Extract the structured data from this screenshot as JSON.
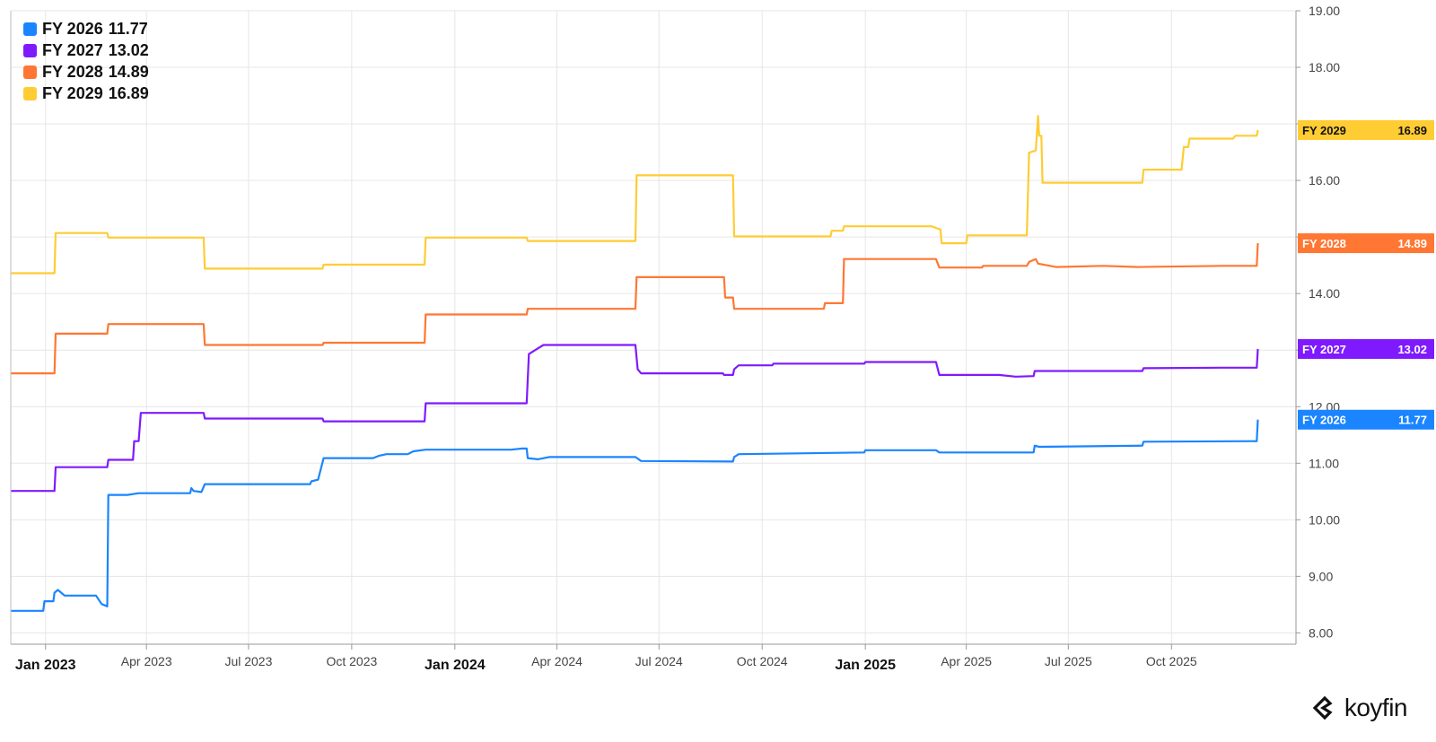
{
  "brand": {
    "name": "koyfin",
    "icon": "koyfin-logo-icon"
  },
  "chart_data": {
    "type": "line",
    "y_axis": {
      "range": [
        7.8,
        19.0
      ],
      "position": "right",
      "ticks": [
        8,
        9,
        10,
        11,
        12,
        13,
        14,
        15,
        16,
        17,
        18,
        19
      ],
      "tick_labels": [
        "8.00",
        "9.00",
        "10.00",
        "11.00",
        "12.00",
        "",
        "14.00",
        "",
        "16.00",
        "",
        "18.00",
        "19.00"
      ]
    },
    "x_axis": {
      "range": [
        "2022-12-01",
        "2026-01-20"
      ],
      "ticks": [
        {
          "date": "2023-01-01",
          "label": "Jan 2023",
          "major": true
        },
        {
          "date": "2023-04-01",
          "label": "Apr 2023",
          "major": false
        },
        {
          "date": "2023-07-01",
          "label": "Jul 2023",
          "major": false
        },
        {
          "date": "2023-10-01",
          "label": "Oct 2023",
          "major": false
        },
        {
          "date": "2024-01-01",
          "label": "Jan 2024",
          "major": true
        },
        {
          "date": "2024-04-01",
          "label": "Apr 2024",
          "major": false
        },
        {
          "date": "2024-07-01",
          "label": "Jul 2024",
          "major": false
        },
        {
          "date": "2024-10-01",
          "label": "Oct 2024",
          "major": false
        },
        {
          "date": "2025-01-01",
          "label": "Jan 2025",
          "major": true
        },
        {
          "date": "2025-04-01",
          "label": "Apr 2025",
          "major": false
        },
        {
          "date": "2025-07-01",
          "label": "Jul 2025",
          "major": false
        },
        {
          "date": "2025-10-01",
          "label": "Oct 2025",
          "major": false
        }
      ]
    },
    "grid": true,
    "legend_position": "top-left",
    "series": [
      {
        "name": "FY 2029",
        "last": "16.89",
        "color": "#ffcc33",
        "label_text_color": "#111111",
        "points": [
          [
            "2022-12-01",
            14.36
          ],
          [
            "2023-01-09",
            14.36
          ],
          [
            "2023-01-10",
            15.07
          ],
          [
            "2023-02-25",
            15.07
          ],
          [
            "2023-02-26",
            14.99
          ],
          [
            "2023-05-22",
            14.99
          ],
          [
            "2023-05-23",
            14.44
          ],
          [
            "2023-09-05",
            14.44
          ],
          [
            "2023-09-06",
            14.51
          ],
          [
            "2023-12-05",
            14.51
          ],
          [
            "2023-12-06",
            14.99
          ],
          [
            "2024-03-05",
            14.99
          ],
          [
            "2024-03-06",
            14.93
          ],
          [
            "2024-06-10",
            14.93
          ],
          [
            "2024-06-11",
            16.09
          ],
          [
            "2024-09-05",
            16.09
          ],
          [
            "2024-09-06",
            15.01
          ],
          [
            "2024-12-01",
            15.01
          ],
          [
            "2024-12-02",
            15.11
          ],
          [
            "2024-12-12",
            15.11
          ],
          [
            "2024-12-13",
            15.19
          ],
          [
            "2025-03-01",
            15.19
          ],
          [
            "2025-03-09",
            15.13
          ],
          [
            "2025-03-10",
            14.89
          ],
          [
            "2025-04-01",
            14.89
          ],
          [
            "2025-04-02",
            15.03
          ],
          [
            "2025-05-25",
            15.03
          ],
          [
            "2025-05-27",
            16.49
          ],
          [
            "2025-06-02",
            16.53
          ],
          [
            "2025-06-04",
            17.14
          ],
          [
            "2025-06-05",
            16.79
          ],
          [
            "2025-06-07",
            16.79
          ],
          [
            "2025-06-08",
            15.96
          ],
          [
            "2025-09-05",
            15.96
          ],
          [
            "2025-09-06",
            16.19
          ],
          [
            "2025-10-10",
            16.19
          ],
          [
            "2025-10-12",
            16.59
          ],
          [
            "2025-10-16",
            16.59
          ],
          [
            "2025-10-17",
            16.74
          ],
          [
            "2025-11-25",
            16.74
          ],
          [
            "2025-11-27",
            16.79
          ],
          [
            "2025-12-16",
            16.79
          ],
          [
            "2025-12-17",
            16.89
          ]
        ]
      },
      {
        "name": "FY 2028",
        "last": "14.89",
        "color": "#ff7733",
        "label_text_color": "#ffffff",
        "points": [
          [
            "2022-12-01",
            12.59
          ],
          [
            "2023-01-09",
            12.59
          ],
          [
            "2023-01-10",
            13.29
          ],
          [
            "2023-02-25",
            13.29
          ],
          [
            "2023-02-26",
            13.46
          ],
          [
            "2023-05-22",
            13.46
          ],
          [
            "2023-05-23",
            13.09
          ],
          [
            "2023-09-05",
            13.09
          ],
          [
            "2023-09-06",
            13.13
          ],
          [
            "2023-12-05",
            13.13
          ],
          [
            "2023-12-06",
            13.63
          ],
          [
            "2024-03-05",
            13.63
          ],
          [
            "2024-03-06",
            13.73
          ],
          [
            "2024-06-10",
            13.73
          ],
          [
            "2024-06-11",
            14.29
          ],
          [
            "2024-08-28",
            14.29
          ],
          [
            "2024-08-29",
            13.93
          ],
          [
            "2024-09-05",
            13.93
          ],
          [
            "2024-09-06",
            13.73
          ],
          [
            "2024-11-25",
            13.73
          ],
          [
            "2024-11-26",
            13.83
          ],
          [
            "2024-12-12",
            13.83
          ],
          [
            "2024-12-13",
            14.61
          ],
          [
            "2025-03-05",
            14.61
          ],
          [
            "2025-03-08",
            14.46
          ],
          [
            "2025-04-15",
            14.46
          ],
          [
            "2025-04-16",
            14.49
          ],
          [
            "2025-05-25",
            14.49
          ],
          [
            "2025-05-27",
            14.56
          ],
          [
            "2025-06-02",
            14.61
          ],
          [
            "2025-06-04",
            14.53
          ],
          [
            "2025-06-20",
            14.47
          ],
          [
            "2025-08-01",
            14.49
          ],
          [
            "2025-09-01",
            14.47
          ],
          [
            "2025-11-15",
            14.49
          ],
          [
            "2025-12-16",
            14.49
          ],
          [
            "2025-12-17",
            14.89
          ]
        ]
      },
      {
        "name": "FY 2027",
        "last": "13.02",
        "color": "#7f1aff",
        "label_text_color": "#ffffff",
        "points": [
          [
            "2022-12-01",
            10.51
          ],
          [
            "2023-01-09",
            10.51
          ],
          [
            "2023-01-10",
            10.93
          ],
          [
            "2023-02-25",
            10.93
          ],
          [
            "2023-02-26",
            11.06
          ],
          [
            "2023-03-20",
            11.06
          ],
          [
            "2023-03-21",
            11.39
          ],
          [
            "2023-03-25",
            11.39
          ],
          [
            "2023-03-27",
            11.89
          ],
          [
            "2023-05-22",
            11.89
          ],
          [
            "2023-05-23",
            11.79
          ],
          [
            "2023-09-05",
            11.79
          ],
          [
            "2023-09-06",
            11.74
          ],
          [
            "2023-12-05",
            11.74
          ],
          [
            "2023-12-06",
            12.06
          ],
          [
            "2024-03-05",
            12.06
          ],
          [
            "2024-03-07",
            12.93
          ],
          [
            "2024-03-15",
            13.03
          ],
          [
            "2024-03-20",
            13.09
          ],
          [
            "2024-06-10",
            13.09
          ],
          [
            "2024-06-12",
            12.66
          ],
          [
            "2024-06-15",
            12.59
          ],
          [
            "2024-08-27",
            12.59
          ],
          [
            "2024-08-28",
            12.56
          ],
          [
            "2024-09-05",
            12.56
          ],
          [
            "2024-09-06",
            12.66
          ],
          [
            "2024-09-10",
            12.73
          ],
          [
            "2024-10-10",
            12.73
          ],
          [
            "2024-10-11",
            12.76
          ],
          [
            "2024-12-31",
            12.76
          ],
          [
            "2025-01-01",
            12.79
          ],
          [
            "2025-03-05",
            12.79
          ],
          [
            "2025-03-08",
            12.56
          ],
          [
            "2025-04-30",
            12.56
          ],
          [
            "2025-05-15",
            12.53
          ],
          [
            "2025-05-31",
            12.54
          ],
          [
            "2025-06-01",
            12.63
          ],
          [
            "2025-07-01",
            12.63
          ],
          [
            "2025-09-05",
            12.63
          ],
          [
            "2025-09-06",
            12.68
          ],
          [
            "2025-11-15",
            12.69
          ],
          [
            "2025-12-16",
            12.69
          ],
          [
            "2025-12-17",
            13.02
          ]
        ]
      },
      {
        "name": "FY 2026",
        "last": "11.77",
        "color": "#1a85ff",
        "label_text_color": "#ffffff",
        "points": [
          [
            "2022-12-01",
            8.39
          ],
          [
            "2022-12-30",
            8.39
          ],
          [
            "2022-12-31",
            8.56
          ],
          [
            "2023-01-08",
            8.56
          ],
          [
            "2023-01-09",
            8.71
          ],
          [
            "2023-01-12",
            8.76
          ],
          [
            "2023-01-18",
            8.66
          ],
          [
            "2023-02-15",
            8.66
          ],
          [
            "2023-02-20",
            8.51
          ],
          [
            "2023-02-25",
            8.47
          ],
          [
            "2023-02-26",
            10.44
          ],
          [
            "2023-03-15",
            10.44
          ],
          [
            "2023-03-25",
            10.47
          ],
          [
            "2023-05-10",
            10.47
          ],
          [
            "2023-05-11",
            10.56
          ],
          [
            "2023-05-13",
            10.51
          ],
          [
            "2023-05-20",
            10.49
          ],
          [
            "2023-05-23",
            10.63
          ],
          [
            "2023-08-25",
            10.63
          ],
          [
            "2023-08-26",
            10.68
          ],
          [
            "2023-09-01",
            10.71
          ],
          [
            "2023-09-06",
            11.09
          ],
          [
            "2023-10-20",
            11.09
          ],
          [
            "2023-10-25",
            11.13
          ],
          [
            "2023-11-01",
            11.16
          ],
          [
            "2023-11-20",
            11.16
          ],
          [
            "2023-11-25",
            11.21
          ],
          [
            "2023-12-06",
            11.24
          ],
          [
            "2024-02-20",
            11.24
          ],
          [
            "2024-03-01",
            11.26
          ],
          [
            "2024-03-05",
            11.26
          ],
          [
            "2024-03-06",
            11.09
          ],
          [
            "2024-03-15",
            11.07
          ],
          [
            "2024-03-25",
            11.11
          ],
          [
            "2024-06-10",
            11.11
          ],
          [
            "2024-06-15",
            11.04
          ],
          [
            "2024-09-05",
            11.03
          ],
          [
            "2024-09-06",
            11.11
          ],
          [
            "2024-09-10",
            11.16
          ],
          [
            "2024-12-31",
            11.19
          ],
          [
            "2025-01-01",
            11.23
          ],
          [
            "2025-03-05",
            11.23
          ],
          [
            "2025-03-08",
            11.19
          ],
          [
            "2025-05-31",
            11.19
          ],
          [
            "2025-06-01",
            11.31
          ],
          [
            "2025-06-05",
            11.29
          ],
          [
            "2025-09-05",
            11.31
          ],
          [
            "2025-09-06",
            11.38
          ],
          [
            "2025-12-16",
            11.39
          ],
          [
            "2025-12-17",
            11.77
          ]
        ]
      }
    ]
  },
  "legend": [
    {
      "label": "FY 2026",
      "value": "11.77",
      "color": "#1a85ff"
    },
    {
      "label": "FY 2027",
      "value": "13.02",
      "color": "#7f1aff"
    },
    {
      "label": "FY 2028",
      "value": "14.89",
      "color": "#ff7733"
    },
    {
      "label": "FY 2029",
      "value": "16.89",
      "color": "#ffcc33"
    }
  ]
}
